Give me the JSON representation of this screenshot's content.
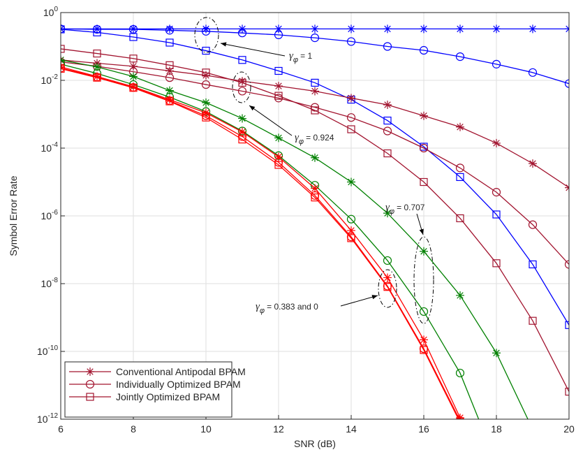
{
  "chart_data": {
    "type": "line",
    "log_y": true,
    "grid": true,
    "x_label": "SNR (dB)",
    "y_label": "Symbol Error Rate",
    "xlim": [
      6,
      20
    ],
    "xticks": [
      6,
      8,
      10,
      12,
      14,
      16,
      18,
      20
    ],
    "ylim": [
      1e-12,
      1
    ],
    "yticks": [
      {
        "value": 1,
        "label": "10",
        "exponent": "0"
      },
      {
        "value": 0.01,
        "label": "10",
        "exponent": "-2"
      },
      {
        "value": 0.0001,
        "label": "10",
        "exponent": "-4"
      },
      {
        "value": 1e-06,
        "label": "10",
        "exponent": "-6"
      },
      {
        "value": 1e-08,
        "label": "10",
        "exponent": "-8"
      },
      {
        "value": 1e-10,
        "label": "10",
        "exponent": "-10"
      },
      {
        "value": 1e-12,
        "label": "10",
        "exponent": "-12"
      }
    ],
    "x": [
      6,
      7,
      8,
      9,
      10,
      11,
      12,
      13,
      14,
      15,
      16,
      17,
      18,
      19,
      20
    ],
    "legend_position": "lower left",
    "legend": [
      {
        "name": "Conventional Antipodal BPAM",
        "marker": "star",
        "color": "#a2142f"
      },
      {
        "name": "Individually Optimized BPAM",
        "marker": "circle",
        "color": "#a2142f"
      },
      {
        "name": "Jointly Optimized BPAM",
        "marker": "square",
        "color": "#a2142f"
      }
    ],
    "series": [
      {
        "marker": "star",
        "color": "#0000ff",
        "values": [
          0.33,
          0.33,
          0.33,
          0.33,
          0.33,
          0.33,
          0.33,
          0.33,
          0.33,
          0.33,
          0.33,
          0.33,
          0.33,
          0.33,
          0.33
        ]
      },
      {
        "marker": "circle",
        "color": "#0000ff",
        "values": [
          0.33,
          0.32,
          0.32,
          0.3,
          0.28,
          0.25,
          0.22,
          0.18,
          0.14,
          0.1,
          0.077,
          0.05,
          0.03,
          0.017,
          0.008
        ]
      },
      {
        "marker": "square",
        "color": "#0000ff",
        "values": [
          0.32,
          0.26,
          0.19,
          0.13,
          0.075,
          0.04,
          0.019,
          0.0085,
          0.0027,
          0.00065,
          0.00011,
          1.4e-05,
          1.1e-06,
          3.7e-08,
          6e-10
        ]
      },
      {
        "marker": "star",
        "color": "#a2142f",
        "values": [
          0.04,
          0.032,
          0.026,
          0.019,
          0.014,
          0.0095,
          0.0068,
          0.0048,
          0.003,
          0.0019,
          0.0009,
          0.00042,
          0.00014,
          3.5e-05,
          6.8e-06
        ]
      },
      {
        "marker": "circle",
        "color": "#a2142f",
        "values": [
          0.035,
          0.026,
          0.018,
          0.012,
          0.0075,
          0.0048,
          0.003,
          0.0016,
          0.0008,
          0.00032,
          0.0001,
          2.6e-05,
          5e-06,
          5.5e-07,
          3.7e-08
        ]
      },
      {
        "marker": "square",
        "color": "#a2142f",
        "values": [
          0.085,
          0.062,
          0.044,
          0.028,
          0.017,
          0.0085,
          0.0035,
          0.0013,
          0.00036,
          7e-05,
          1e-05,
          8.5e-07,
          4e-08,
          8e-10,
          6.5e-12
        ]
      },
      {
        "marker": "star",
        "color": "#008000",
        "values": [
          0.04,
          0.025,
          0.013,
          0.005,
          0.0022,
          0.00075,
          0.0002,
          5.2e-05,
          1e-05,
          1.2e-06,
          9e-08,
          4.5e-09,
          9e-11,
          5e-13,
          null
        ]
      },
      {
        "marker": "circle",
        "color": "#008000",
        "values": [
          0.03,
          0.016,
          0.0075,
          0.0032,
          0.0012,
          0.00032,
          6e-05,
          8e-06,
          8e-07,
          4.8e-08,
          1.5e-09,
          2.3e-11,
          5e-14,
          null,
          null
        ]
      },
      {
        "marker": "star",
        "color": "#ff0000",
        "values": [
          0.025,
          0.013,
          0.0065,
          0.0027,
          0.0011,
          0.0003,
          5.5e-05,
          6.5e-06,
          3.7e-07,
          1.5e-08,
          2.2e-10,
          1.1e-12,
          null,
          null,
          null
        ]
      },
      {
        "marker": "circle",
        "color": "#ff0000",
        "values": [
          0.023,
          0.0125,
          0.0062,
          0.0025,
          0.0009,
          0.00022,
          3.8e-05,
          4e-06,
          2.4e-07,
          8.5e-09,
          1.2e-10,
          9e-13,
          null,
          null,
          null
        ]
      },
      {
        "marker": "square",
        "color": "#ff0000",
        "values": [
          0.022,
          0.012,
          0.006,
          0.0024,
          0.0008,
          0.00018,
          3.2e-05,
          3.5e-06,
          2.2e-07,
          8e-09,
          1.1e-10,
          8e-13,
          null,
          null,
          null
        ]
      }
    ],
    "annotations": [
      {
        "symbol": "γ",
        "sub": "φ",
        "text": "= 1"
      },
      {
        "symbol": "γ",
        "sub": "φ",
        "text": "= 0.924"
      },
      {
        "symbol": "γ",
        "sub": "φ",
        "text": "= 0.707"
      },
      {
        "symbol": "γ",
        "sub": "φ",
        "text": "= 0.383 and 0"
      }
    ]
  }
}
